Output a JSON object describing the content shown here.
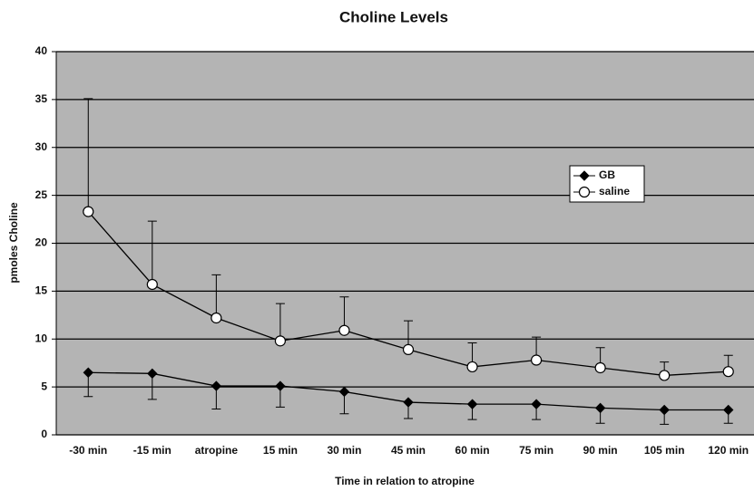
{
  "chart_data": {
    "type": "line",
    "title": "Choline Levels",
    "x_label": "Time in relation to atropine",
    "y_label": "pmoles Choline",
    "categories": [
      "-30 min",
      "-15 min",
      "atropine",
      "15 min",
      "30 min",
      "45 min",
      "60 min",
      "75 min",
      "90 min",
      "105 min",
      "120 min"
    ],
    "series": [
      {
        "name": "GB",
        "color": "#000000",
        "marker_fill": "#000000",
        "marker": "diamond",
        "error_direction": "down",
        "values": [
          6.5,
          6.4,
          5.1,
          5.1,
          4.5,
          3.4,
          3.2,
          3.2,
          2.8,
          2.6,
          2.6
        ],
        "errors": [
          2.5,
          2.7,
          2.4,
          2.2,
          2.3,
          1.7,
          1.6,
          1.6,
          1.6,
          1.5,
          1.4
        ]
      },
      {
        "name": "saline",
        "color": "#000000",
        "marker_fill": "#ffffff",
        "marker": "circle",
        "error_direction": "up",
        "values": [
          23.3,
          15.7,
          12.2,
          9.8,
          10.9,
          8.9,
          7.1,
          7.8,
          7.0,
          6.2,
          6.6
        ],
        "errors": [
          11.8,
          6.6,
          4.5,
          3.9,
          3.5,
          3.0,
          2.5,
          2.4,
          2.1,
          1.4,
          1.7
        ]
      }
    ],
    "ylim": [
      0,
      40
    ],
    "yticks": [
      0,
      5,
      10,
      15,
      20,
      25,
      30,
      35,
      40
    ],
    "grid": true,
    "plot_background": "#b4b4b4",
    "legend": "upper right"
  }
}
